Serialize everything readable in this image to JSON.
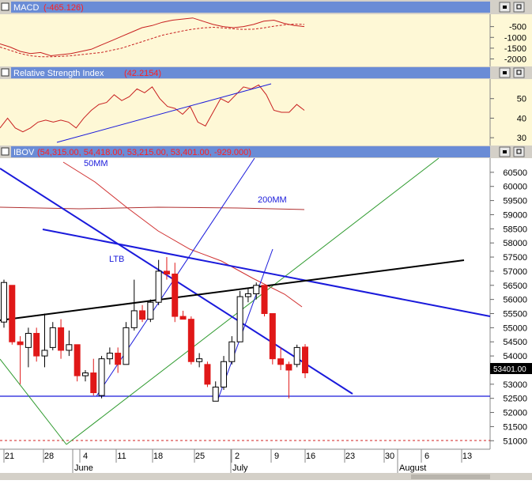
{
  "panels": {
    "macd": {
      "name": "MACD",
      "value": "(-465.126)"
    },
    "rsi": {
      "name": "Relative Strength Index",
      "value": "(42.2154)"
    },
    "price": {
      "name": "IBOV",
      "value": "(54,315.00, 54,418.00, 53,215.00, 53,401.00, -929.000)"
    }
  },
  "last_price_label": "53401.00",
  "colors": {
    "title_bar": "#6a8cd6",
    "indicator_bg": "#fef8d6",
    "up": "#ffffff",
    "down": "#e01818",
    "ma": "#c82020",
    "trend": "#1a1adb",
    "support": "#000000",
    "diag": "#2e9a2e"
  },
  "chart_data": [
    {
      "type": "line",
      "title": "MACD (-465.126)",
      "ylim": [
        -2200,
        0
      ],
      "yticks": [
        "-500",
        "-1000",
        "-1500",
        "-2000"
      ],
      "series": [
        {
          "values": [
            -1300,
            -1450,
            -1650,
            -1750,
            -1700,
            -1850,
            -1800,
            -1750,
            -1650,
            -1550,
            -1350,
            -1150,
            -950,
            -750,
            -550,
            -450,
            -300,
            -200,
            -150,
            -100,
            -250,
            -400,
            -500,
            -550,
            -500,
            -400,
            -250,
            -200,
            -350,
            -450,
            -500
          ]
        },
        {
          "values": [
            -1450,
            -1600,
            -1750,
            -1850,
            -1900,
            -1900,
            -1880,
            -1850,
            -1800,
            -1750,
            -1700,
            -1600,
            -1500,
            -1350,
            -1200,
            -1050,
            -900,
            -800,
            -700,
            -620,
            -560,
            -530,
            -560,
            -600,
            -630,
            -620,
            -560,
            -480,
            -420,
            -380,
            -400
          ]
        }
      ]
    },
    {
      "type": "line",
      "title": "Relative Strength Index (42.2154)",
      "ylim": [
        26,
        60
      ],
      "yticks": [
        "50",
        "40",
        "30"
      ],
      "series": [
        {
          "values": [
            35,
            40,
            35,
            33,
            35,
            38,
            39,
            38,
            39,
            38,
            35,
            40,
            44,
            47,
            48,
            52,
            49,
            51,
            55,
            53,
            56,
            50,
            46,
            45,
            42,
            46,
            38,
            36,
            43,
            50,
            48,
            52,
            56,
            55,
            57,
            52,
            44,
            43,
            43,
            47,
            44
          ]
        }
      ]
    },
    {
      "type": "candlestick",
      "title": "IBOV (54,315.00, 54,418.00, 53,215.00, 53,401.00, -929.000)",
      "ylim": [
        50700,
        61000
      ],
      "yticks": [
        "60500",
        "60000",
        "59500",
        "59000",
        "58500",
        "58000",
        "57500",
        "57000",
        "56500",
        "56000",
        "55500",
        "55000",
        "54500",
        "54000",
        "53500",
        "53000",
        "52500",
        "52000",
        "51500",
        "51000"
      ],
      "x_tick_labels": [
        "21",
        "28",
        "4",
        "11",
        "18",
        "25",
        "2",
        "9",
        "16",
        "23",
        "30",
        "6",
        "13"
      ],
      "x_month_labels": [
        "June",
        "July",
        "August"
      ],
      "annotations": [
        "50MM",
        "200MM",
        "LTB"
      ],
      "candles": [
        {
          "o": 55200,
          "h": 56700,
          "l": 55000,
          "c": 56600
        },
        {
          "o": 56500,
          "h": 56500,
          "l": 54400,
          "c": 54500
        },
        {
          "o": 54500,
          "h": 54700,
          "l": 53000,
          "c": 54400
        },
        {
          "o": 54300,
          "h": 55000,
          "l": 53600,
          "c": 54800
        },
        {
          "o": 54800,
          "h": 55000,
          "l": 53800,
          "c": 54000
        },
        {
          "o": 54000,
          "h": 55500,
          "l": 53600,
          "c": 54200
        },
        {
          "o": 54300,
          "h": 55200,
          "l": 54200,
          "c": 55000
        },
        {
          "o": 55000,
          "h": 55300,
          "l": 53900,
          "c": 54200
        },
        {
          "o": 54200,
          "h": 54900,
          "l": 54000,
          "c": 54400
        },
        {
          "o": 54400,
          "h": 54400,
          "l": 53100,
          "c": 53300
        },
        {
          "o": 53300,
          "h": 53500,
          "l": 53100,
          "c": 53400
        },
        {
          "o": 53400,
          "h": 53900,
          "l": 52600,
          "c": 52700
        },
        {
          "o": 52600,
          "h": 54000,
          "l": 52500,
          "c": 53900
        },
        {
          "o": 53900,
          "h": 54300,
          "l": 53700,
          "c": 54100
        },
        {
          "o": 54100,
          "h": 54300,
          "l": 53400,
          "c": 53700
        },
        {
          "o": 53700,
          "h": 55200,
          "l": 53700,
          "c": 55000
        },
        {
          "o": 55000,
          "h": 56700,
          "l": 54900,
          "c": 55600
        },
        {
          "o": 55600,
          "h": 55800,
          "l": 55200,
          "c": 55300
        },
        {
          "o": 55300,
          "h": 56000,
          "l": 55200,
          "c": 55900
        },
        {
          "o": 55900,
          "h": 57400,
          "l": 55800,
          "c": 57000
        },
        {
          "o": 57000,
          "h": 57500,
          "l": 56700,
          "c": 56900
        },
        {
          "o": 56900,
          "h": 57300,
          "l": 55200,
          "c": 55400
        },
        {
          "o": 55400,
          "h": 55600,
          "l": 55300,
          "c": 55300
        },
        {
          "o": 55300,
          "h": 55400,
          "l": 53700,
          "c": 53800
        },
        {
          "o": 53800,
          "h": 54100,
          "l": 53600,
          "c": 53900
        },
        {
          "o": 53700,
          "h": 53800,
          "l": 52900,
          "c": 53000
        },
        {
          "o": 52400,
          "h": 53100,
          "l": 52400,
          "c": 52900
        },
        {
          "o": 52900,
          "h": 54000,
          "l": 52800,
          "c": 53800
        },
        {
          "o": 53800,
          "h": 54700,
          "l": 53700,
          "c": 54500
        },
        {
          "o": 54500,
          "h": 56300,
          "l": 54500,
          "c": 56100
        },
        {
          "o": 56100,
          "h": 56400,
          "l": 55900,
          "c": 56200
        },
        {
          "o": 56200,
          "h": 56600,
          "l": 56000,
          "c": 56500
        },
        {
          "o": 56500,
          "h": 56500,
          "l": 55400,
          "c": 55500
        },
        {
          "o": 55500,
          "h": 55500,
          "l": 53700,
          "c": 53900
        },
        {
          "o": 53900,
          "h": 54300,
          "l": 53500,
          "c": 53700
        },
        {
          "o": 53700,
          "h": 53800,
          "l": 52500,
          "c": 53500
        },
        {
          "o": 53700,
          "h": 54400,
          "l": 53600,
          "c": 54300
        },
        {
          "o": 54315,
          "h": 54418,
          "l": 53215,
          "c": 53401
        }
      ]
    }
  ]
}
